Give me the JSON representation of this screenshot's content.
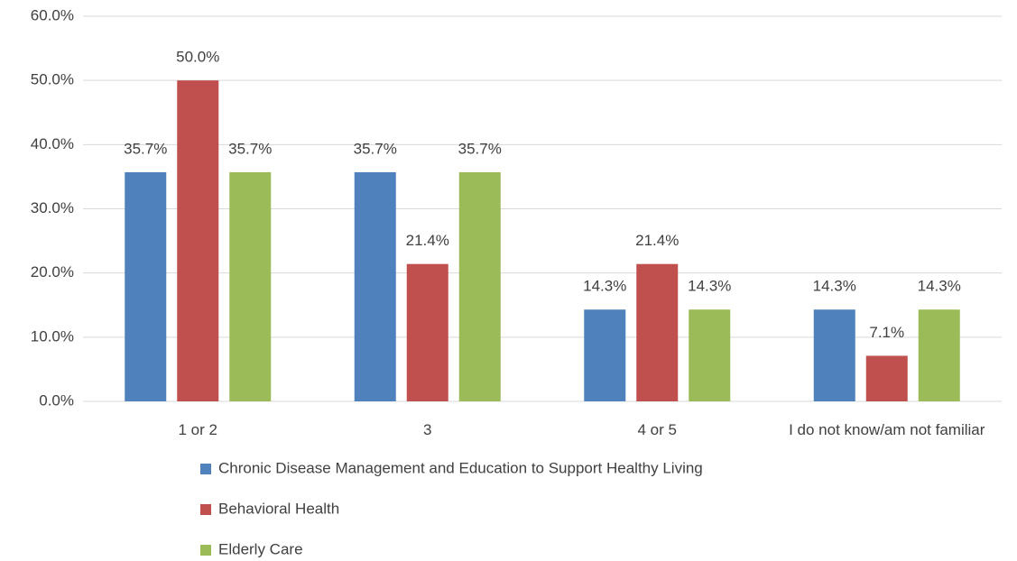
{
  "chart_data": {
    "type": "bar",
    "categories": [
      "1 or 2",
      "3",
      "4 or 5",
      "I do not know/am not familiar"
    ],
    "series": [
      {
        "name": "Chronic Disease Management and Education to Support Healthy Living",
        "color": "#4f81bd",
        "values": [
          35.7,
          35.7,
          14.3,
          14.3
        ],
        "value_labels": [
          "35.7%",
          "35.7%",
          "14.3%",
          "14.3%"
        ]
      },
      {
        "name": "Behavioral Health",
        "color": "#c0504d",
        "values": [
          50.0,
          21.4,
          21.4,
          7.1
        ],
        "value_labels": [
          "50.0%",
          "21.4%",
          "21.4%",
          "7.1%"
        ]
      },
      {
        "name": "Elderly Care",
        "color": "#9bbb59",
        "values": [
          35.7,
          35.7,
          14.3,
          14.3
        ],
        "value_labels": [
          "35.7%",
          "35.7%",
          "14.3%",
          "14.3%"
        ]
      }
    ],
    "ylim": [
      0,
      60
    ],
    "yticks": [
      {
        "value": 0,
        "label": "0.0%"
      },
      {
        "value": 10,
        "label": "10.0%"
      },
      {
        "value": 20,
        "label": "20.0%"
      },
      {
        "value": 30,
        "label": "30.0%"
      },
      {
        "value": 40,
        "label": "40.0%"
      },
      {
        "value": 50,
        "label": "50.0%"
      },
      {
        "value": 60,
        "label": "60.0%"
      }
    ],
    "grid": true,
    "legend": "bottom"
  }
}
